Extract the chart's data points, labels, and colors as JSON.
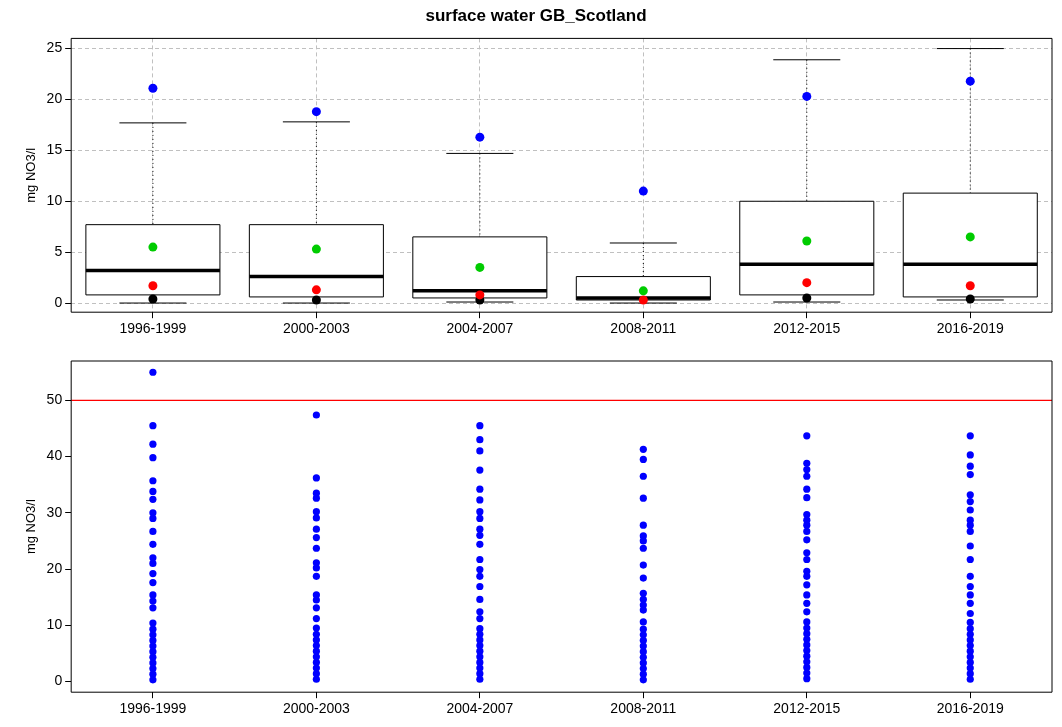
{
  "chart_data": [
    {
      "type": "box",
      "title": "surface water GB_Scotland",
      "ylabel": "mg NO3/l",
      "categories": [
        "1996-1999",
        "2000-2003",
        "2004-2007",
        "2008-2011",
        "2012-2015",
        "2016-2019"
      ],
      "boxes": [
        {
          "low": 0,
          "q1": 0.8,
          "median": 3.2,
          "q3": 7.7,
          "high": 17.7
        },
        {
          "low": 0,
          "q1": 0.6,
          "median": 2.6,
          "q3": 7.7,
          "high": 17.8
        },
        {
          "low": 0.1,
          "q1": 0.5,
          "median": 1.2,
          "q3": 6.5,
          "high": 14.7
        },
        {
          "low": 0,
          "q1": 0.3,
          "median": 0.5,
          "q3": 2.6,
          "high": 5.9
        },
        {
          "low": 0.1,
          "q1": 0.8,
          "median": 3.8,
          "q3": 10.0,
          "high": 23.9
        },
        {
          "low": 0.3,
          "q1": 0.6,
          "median": 3.8,
          "q3": 10.8,
          "high": 25.0
        }
      ],
      "series": [
        {
          "type": "scatter",
          "color": "#0000ff",
          "x": [
            "1996-1999",
            "2000-2003",
            "2004-2007",
            "2008-2011",
            "2012-2015",
            "2016-2019"
          ],
          "values": [
            21.1,
            18.8,
            16.3,
            11.0,
            20.3,
            21.8
          ]
        },
        {
          "type": "scatter",
          "color": "#00cc00",
          "x": [
            "1996-1999",
            "2000-2003",
            "2004-2007",
            "2008-2011",
            "2012-2015",
            "2016-2019"
          ],
          "values": [
            5.5,
            5.3,
            3.5,
            1.2,
            6.1,
            6.5
          ]
        },
        {
          "type": "scatter",
          "color": "#ff0000",
          "x": [
            "1996-1999",
            "2000-2003",
            "2004-2007",
            "2008-2011",
            "2012-2015",
            "2016-2019"
          ],
          "values": [
            1.7,
            1.3,
            0.8,
            0.3,
            2.0,
            1.7
          ]
        },
        {
          "type": "scatter",
          "color": "#000000",
          "x": [
            "1996-1999",
            "2000-2003",
            "2004-2007",
            "2008-2011",
            "2012-2015",
            "2016-2019"
          ],
          "values": [
            0.4,
            0.3,
            0.3,
            null,
            0.5,
            0.4
          ]
        }
      ],
      "ylim": [
        -0.9,
        26
      ],
      "yticks": [
        0,
        5,
        10,
        15,
        20,
        25
      ],
      "grid": true,
      "marker": "circle"
    },
    {
      "type": "scatter",
      "ylabel": "mg NO3/l",
      "categories": [
        "1996-1999",
        "2000-2003",
        "2004-2007",
        "2008-2011",
        "2012-2015",
        "2016-2019"
      ],
      "ylim": [
        -1.9,
        57
      ],
      "yticks": [
        0,
        10,
        20,
        30,
        40,
        50
      ],
      "marker": "circle",
      "ref_lines": [
        {
          "axis": "y",
          "value": 50,
          "color": "#ff0000"
        }
      ],
      "series": [
        {
          "color": "#0000ff",
          "x": [
            "1996-1999",
            "1996-1999",
            "1996-1999",
            "1996-1999",
            "1996-1999",
            "1996-1999",
            "1996-1999",
            "1996-1999",
            "1996-1999",
            "1996-1999",
            "1996-1999",
            "1996-1999",
            "1996-1999",
            "1996-1999",
            "1996-1999",
            "1996-1999",
            "1996-1999",
            "1996-1999",
            "1996-1999",
            "1996-1999",
            "1996-1999",
            "1996-1999",
            "1996-1999",
            "1996-1999",
            "1996-1999",
            "1996-1999",
            "1996-1999",
            "1996-1999",
            "1996-1999"
          ],
          "values": [
            55.0,
            45.5,
            42.2,
            39.8,
            35.7,
            33.8,
            32.4,
            30.0,
            29.0,
            26.7,
            24.4,
            22.0,
            21.0,
            19.2,
            17.6,
            15.4,
            14.3,
            13.1,
            0.3,
            1.3,
            2.3,
            3.3,
            4.3,
            5.3,
            6.3,
            7.3,
            8.3,
            9.3,
            10.4
          ]
        },
        {
          "color": "#0000ff",
          "x": [
            "2000-2003",
            "2000-2003",
            "2000-2003",
            "2000-2003",
            "2000-2003",
            "2000-2003",
            "2000-2003",
            "2000-2003",
            "2000-2003",
            "2000-2003",
            "2000-2003",
            "2000-2003",
            "2000-2003",
            "2000-2003",
            "2000-2003",
            "2000-2003",
            "2000-2003",
            "2000-2003",
            "2000-2003",
            "2000-2003",
            "2000-2003",
            "2000-2003",
            "2000-2003",
            "2000-2003",
            "2000-2003",
            "2000-2003"
          ],
          "values": [
            47.4,
            36.2,
            33.5,
            32.6,
            30.2,
            29.1,
            27.1,
            25.6,
            23.7,
            21.1,
            20.2,
            18.7,
            15.4,
            14.5,
            13.1,
            0.4,
            1.4,
            2.4,
            3.4,
            4.4,
            5.4,
            6.4,
            7.4,
            8.4,
            9.5,
            11.2
          ]
        },
        {
          "color": "#0000ff",
          "x": [
            "2004-2007",
            "2004-2007",
            "2004-2007",
            "2004-2007",
            "2004-2007",
            "2004-2007",
            "2004-2007",
            "2004-2007",
            "2004-2007",
            "2004-2007",
            "2004-2007",
            "2004-2007",
            "2004-2007",
            "2004-2007",
            "2004-2007",
            "2004-2007",
            "2004-2007",
            "2004-2007",
            "2004-2007",
            "2004-2007",
            "2004-2007",
            "2004-2007",
            "2004-2007",
            "2004-2007",
            "2004-2007",
            "2004-2007",
            "2004-2007",
            "2004-2007"
          ],
          "values": [
            45.5,
            43.0,
            41.0,
            37.6,
            34.2,
            32.3,
            30.2,
            29.0,
            27.1,
            26.0,
            24.4,
            21.7,
            19.9,
            18.7,
            16.9,
            14.6,
            12.4,
            0.4,
            1.4,
            2.4,
            3.4,
            4.4,
            5.4,
            6.4,
            7.4,
            8.4,
            9.4,
            11.2
          ]
        },
        {
          "color": "#0000ff",
          "x": [
            "2008-2011",
            "2008-2011",
            "2008-2011",
            "2008-2011",
            "2008-2011",
            "2008-2011",
            "2008-2011",
            "2008-2011",
            "2008-2011",
            "2008-2011",
            "2008-2011",
            "2008-2011",
            "2008-2011",
            "2008-2011",
            "2008-2011",
            "2008-2011",
            "2008-2011",
            "2008-2011",
            "2008-2011",
            "2008-2011",
            "2008-2011",
            "2008-2011",
            "2008-2011",
            "2008-2011",
            "2008-2011"
          ],
          "values": [
            41.3,
            39.5,
            36.5,
            32.6,
            27.8,
            25.9,
            25.0,
            23.7,
            20.7,
            18.4,
            15.7,
            14.6,
            13.6,
            12.7,
            0.3,
            1.3,
            2.3,
            3.3,
            4.3,
            5.3,
            6.3,
            7.3,
            8.3,
            9.3,
            10.6
          ]
        },
        {
          "color": "#0000ff",
          "x": [
            "2012-2015",
            "2012-2015",
            "2012-2015",
            "2012-2015",
            "2012-2015",
            "2012-2015",
            "2012-2015",
            "2012-2015",
            "2012-2015",
            "2012-2015",
            "2012-2015",
            "2012-2015",
            "2012-2015",
            "2012-2015",
            "2012-2015",
            "2012-2015",
            "2012-2015",
            "2012-2015",
            "2012-2015",
            "2012-2015",
            "2012-2015",
            "2012-2015",
            "2012-2015",
            "2012-2015",
            "2012-2015",
            "2012-2015",
            "2012-2015",
            "2012-2015",
            "2012-2015",
            "2012-2015"
          ],
          "values": [
            43.7,
            38.8,
            37.7,
            36.5,
            34.2,
            32.7,
            29.7,
            28.7,
            27.8,
            26.7,
            25.2,
            22.9,
            21.7,
            19.6,
            18.7,
            17.2,
            15.4,
            13.9,
            12.4,
            0.5,
            1.5,
            2.5,
            3.5,
            4.5,
            5.5,
            6.5,
            7.5,
            8.5,
            9.5,
            10.6
          ]
        },
        {
          "color": "#0000ff",
          "x": [
            "2016-2019",
            "2016-2019",
            "2016-2019",
            "2016-2019",
            "2016-2019",
            "2016-2019",
            "2016-2019",
            "2016-2019",
            "2016-2019",
            "2016-2019",
            "2016-2019",
            "2016-2019",
            "2016-2019",
            "2016-2019",
            "2016-2019",
            "2016-2019",
            "2016-2019",
            "2016-2019",
            "2016-2019",
            "2016-2019",
            "2016-2019",
            "2016-2019",
            "2016-2019",
            "2016-2019",
            "2016-2019",
            "2016-2019",
            "2016-2019",
            "2016-2019"
          ],
          "values": [
            43.7,
            40.3,
            38.3,
            36.8,
            33.2,
            32.0,
            30.5,
            28.7,
            27.8,
            26.7,
            24.1,
            21.7,
            18.7,
            16.9,
            15.4,
            13.9,
            12.1,
            0.4,
            1.4,
            2.4,
            3.4,
            4.4,
            5.4,
            6.4,
            7.4,
            8.4,
            9.4,
            10.5
          ]
        }
      ]
    }
  ]
}
